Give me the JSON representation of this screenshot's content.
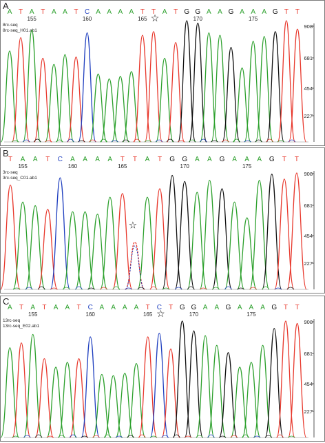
{
  "figure": {
    "colors": {
      "A": "#2ca02c",
      "C": "#1f3fbf",
      "G": "#111111",
      "T": "#e8382c",
      "frame": "#7a7a7a",
      "text": "#222222"
    },
    "star_glyph": "☆"
  },
  "chart_data": [
    {
      "type": "line",
      "panel_label": "A",
      "sample_lines": [
        "8rc-seq",
        "8rc-seq_H01.ab1"
      ],
      "bases": [
        "A",
        "T",
        "A",
        "T",
        "A",
        "A",
        "T",
        "C",
        "A",
        "A",
        "A",
        "A",
        "T",
        "T",
        "A",
        "T",
        "G",
        "G",
        "A",
        "A",
        "G",
        "A",
        "A",
        "A",
        "G",
        "T",
        "T"
      ],
      "position_ticks": [
        {
          "label": "155",
          "base_index": 2
        },
        {
          "label": "160",
          "base_index": 7
        },
        {
          "label": "165",
          "base_index": 12
        },
        {
          "label": "170",
          "base_index": 17
        },
        {
          "label": "175",
          "base_index": 22
        }
      ],
      "ytick_labels": [
        "908",
        "681",
        "454",
        "227"
      ],
      "ylim": [
        0,
        1000
      ],
      "mutation_star_index": 13,
      "peak_heights": [
        750,
        860,
        920,
        690,
        640,
        720,
        700,
        900,
        560,
        520,
        540,
        580,
        880,
        910,
        690,
        820,
        1000,
        980,
        900,
        880,
        780,
        610,
        830,
        870,
        910,
        1000,
        930
      ]
    },
    {
      "type": "line",
      "panel_label": "B",
      "sample_lines": [
        "3rc-seq",
        "3rc-seq_C01.ab1"
      ],
      "bases": [
        "T",
        "A",
        "A",
        "T",
        "C",
        "A",
        "A",
        "A",
        "A",
        "T",
        "T",
        "A",
        "T",
        "G",
        "G",
        "A",
        "A",
        "G",
        "A",
        "A",
        "A",
        "G",
        "T",
        "T"
      ],
      "position_ticks": [
        {
          "label": "155",
          "base_index": 1
        },
        {
          "label": "160",
          "base_index": 5
        },
        {
          "label": "165",
          "base_index": 9
        },
        {
          "label": "170",
          "base_index": 14
        },
        {
          "label": "175",
          "base_index": 19
        }
      ],
      "ytick_labels": [
        "908",
        "681",
        "454",
        "227"
      ],
      "ylim": [
        0,
        1000
      ],
      "mutation_star_index": 10,
      "peak_heights": [
        860,
        720,
        690,
        660,
        920,
        640,
        640,
        620,
        760,
        790,
        390,
        760,
        830,
        940,
        890,
        800,
        900,
        830,
        720,
        590,
        900,
        950,
        910,
        960
      ]
    },
    {
      "type": "line",
      "panel_label": "C",
      "sample_lines": [
        "13rc-seq",
        "13rc-seq_E02.ab1"
      ],
      "bases": [
        "A",
        "T",
        "A",
        "T",
        "A",
        "A",
        "T",
        "C",
        "A",
        "A",
        "A",
        "A",
        "T",
        "C",
        "T",
        "G",
        "G",
        "A",
        "A",
        "G",
        "A",
        "A",
        "A",
        "G",
        "T",
        "T"
      ],
      "position_ticks": [
        {
          "label": "155",
          "base_index": 2
        },
        {
          "label": "160",
          "base_index": 7
        },
        {
          "label": "165",
          "base_index": 12
        },
        {
          "label": "170",
          "base_index": 16
        },
        {
          "label": "175",
          "base_index": 21
        }
      ],
      "ytick_labels": [
        "908",
        "681",
        "454",
        "227"
      ],
      "ylim": [
        0,
        1000
      ],
      "mutation_star_index": 13,
      "peak_heights": [
        740,
        780,
        850,
        650,
        580,
        620,
        650,
        830,
        520,
        510,
        530,
        610,
        830,
        860,
        730,
        960,
        880,
        840,
        760,
        700,
        580,
        620,
        760,
        900,
        960,
        940
      ]
    }
  ]
}
